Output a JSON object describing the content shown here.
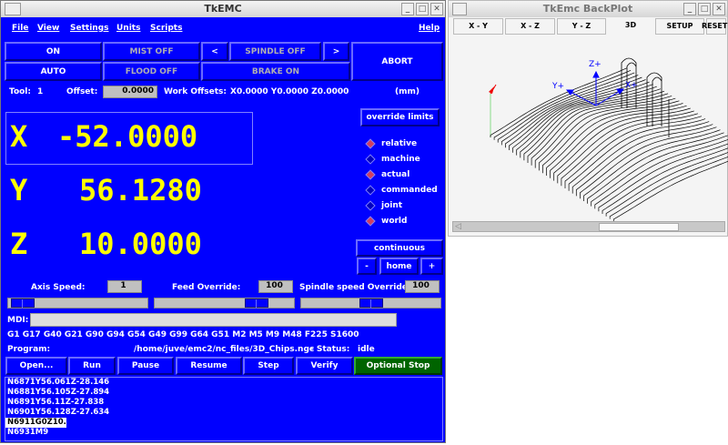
{
  "main": {
    "title": "TkEMC",
    "menu": [
      "File",
      "View",
      "Settings",
      "Units",
      "Scripts"
    ],
    "help": "Help",
    "buttons": {
      "on": "ON",
      "mist": "MIST OFF",
      "prev": "<",
      "spindle": "SPINDLE OFF",
      "next": ">",
      "abort": "ABORT",
      "auto": "AUTO",
      "flood": "FLOOD OFF",
      "brake": "BRAKE ON"
    },
    "tool_label": "Tool:",
    "tool_value": "1",
    "offset_label": "Offset:",
    "offset_value": "0.0000",
    "work_offsets_label": "Work Offsets:",
    "work_offsets_value": "X0.0000 Y0.0000 Z0.0000",
    "units": "(mm)",
    "dro": {
      "x_label": "X",
      "x_value": "-52.0000",
      "y_label": "Y",
      "y_value": "56.1280",
      "z_label": "Z",
      "z_value": "10.0000"
    },
    "override_limits": "override limits",
    "radios": [
      {
        "label": "relative",
        "checked": true
      },
      {
        "label": "machine",
        "checked": false
      },
      {
        "label": "actual",
        "checked": true
      },
      {
        "label": "commanded",
        "checked": false
      },
      {
        "label": "joint",
        "checked": false
      },
      {
        "label": "world",
        "checked": true
      }
    ],
    "jog_mode": "continuous",
    "jog_minus": "-",
    "home": "home",
    "jog_plus": "+",
    "axis_speed_label": "Axis Speed:",
    "axis_speed": "1",
    "feed_override_label": "Feed Override:",
    "feed_override": "100",
    "spindle_override_label": "Spindle speed Override:",
    "spindle_override": "100",
    "sliders": {
      "axis_speed_fraction": 0.02,
      "feed_override_fraction": 0.78,
      "spindle_override_fraction": 0.5
    },
    "mdi_label": "MDI:",
    "mdi_value": "",
    "gcodes": "G1 G17 G40 G21 G90 G94 G54 G49 G99 G64 G51 M2 M5 M9 M48 F225 S1600",
    "program_label": "Program:",
    "program_path": "/home/juve/emc2/nc_files/3D_Chips.ngc",
    "status_label": "-  Status:",
    "status_value": "idle",
    "program_buttons": [
      "Open...",
      "Run",
      "Pause",
      "Resume",
      "Step",
      "Verify",
      "Optional Stop"
    ],
    "code_lines": [
      "N6871Y56.061Z-28.146",
      "N6881Y56.105Z-27.894",
      "N6891Y56.11Z-27.838",
      "N6901Y56.128Z-27.634",
      "N6911G0Z10.",
      "N6931M9"
    ],
    "current_line": 4,
    "colors": {
      "background": "#0000ff",
      "dro": "#ffff00",
      "optional_stop": "#006400",
      "radio_checked": "#d04060"
    }
  },
  "backplot": {
    "title": "TkEmc BackPlot",
    "tabs": [
      "X - Y",
      "X - Z",
      "Y - Z",
      "3D"
    ],
    "setup": "SETUP",
    "reset": "RESET",
    "axes": {
      "z": "Z+",
      "y": "Y+",
      "x": "X+"
    }
  }
}
